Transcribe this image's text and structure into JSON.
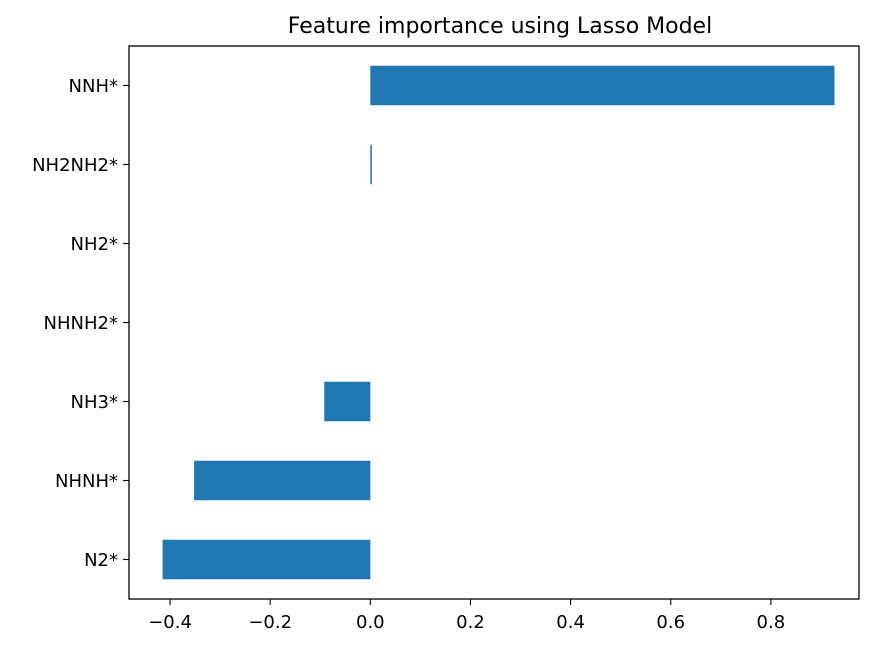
{
  "chart_data": {
    "type": "bar",
    "orientation": "horizontal",
    "title": "Feature importance using Lasso Model",
    "xlabel": "",
    "ylabel": "",
    "categories": [
      "N2*",
      "NHNH*",
      "NH3*",
      "NHNH2*",
      "NH2*",
      "NH2NH2*",
      "NNH*"
    ],
    "values": [
      -0.415,
      -0.352,
      -0.092,
      0.0,
      0.0,
      0.003,
      0.927
    ],
    "xlim": [
      -0.482,
      0.976
    ],
    "xticks": [
      -0.4,
      -0.2,
      0.0,
      0.2,
      0.4,
      0.6,
      0.8
    ],
    "xtick_labels": [
      "−0.4",
      "−0.2",
      "0.0",
      "0.2",
      "0.4",
      "0.6",
      "0.8"
    ],
    "grid": false,
    "bar_color": "#1f77b4"
  }
}
